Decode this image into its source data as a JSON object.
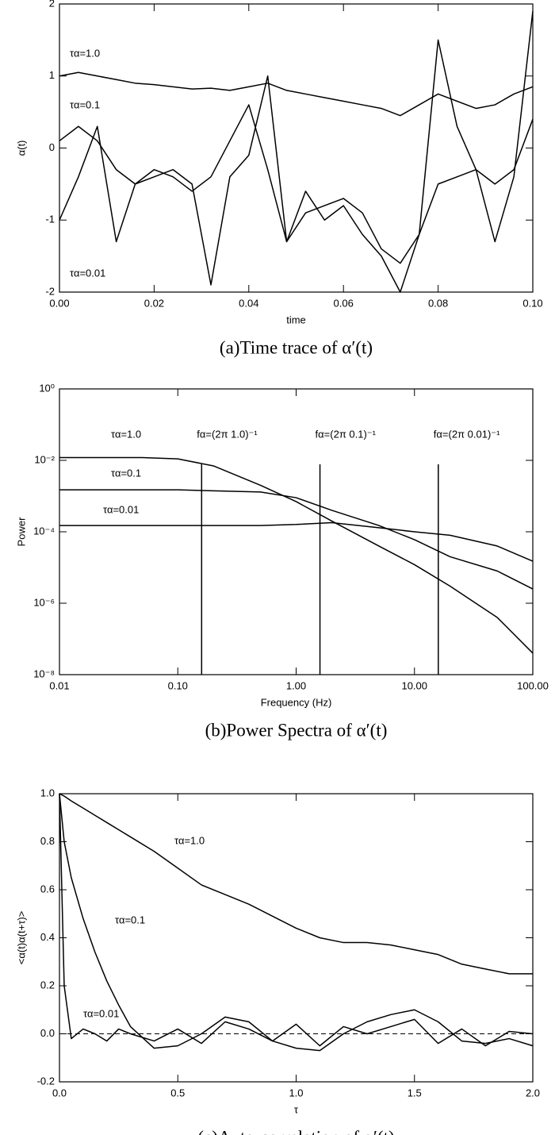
{
  "chart_data": [
    {
      "type": "line",
      "caption": "(a)Time trace of α′(t)",
      "x_label": "time",
      "y_label": "α(t)",
      "x": [
        0,
        0.004,
        0.008,
        0.012,
        0.016,
        0.02,
        0.024,
        0.028,
        0.032,
        0.036,
        0.04,
        0.044,
        0.048,
        0.052,
        0.056,
        0.06,
        0.064,
        0.068,
        0.072,
        0.076,
        0.08,
        0.084,
        0.088,
        0.092,
        0.096,
        0.1
      ],
      "series": [
        {
          "name": "τα=1.0",
          "color": "#000000",
          "values": [
            1.0,
            1.05,
            1.0,
            0.95,
            0.9,
            0.88,
            0.85,
            0.82,
            0.83,
            0.8,
            0.85,
            0.9,
            0.8,
            0.75,
            0.7,
            0.65,
            0.6,
            0.55,
            0.45,
            0.6,
            0.75,
            0.65,
            0.55,
            0.6,
            0.75,
            0.85
          ]
        },
        {
          "name": "τα=0.1",
          "color": "#000000",
          "values": [
            0.1,
            0.3,
            0.1,
            -0.3,
            -0.5,
            -0.3,
            -0.4,
            -0.6,
            -0.4,
            0.1,
            0.6,
            -0.3,
            -1.3,
            -0.9,
            -0.8,
            -0.7,
            -0.9,
            -1.4,
            -1.6,
            -1.2,
            -0.5,
            -0.4,
            -0.3,
            -0.5,
            -0.3,
            0.4
          ]
        },
        {
          "name": "τα=0.01",
          "color": "#000000",
          "values": [
            -1.0,
            -0.4,
            0.3,
            -1.3,
            -0.5,
            -0.4,
            -0.3,
            -0.5,
            -1.9,
            -0.4,
            -0.1,
            1.0,
            -1.3,
            -0.6,
            -1.0,
            -0.8,
            -1.2,
            -1.5,
            -2.0,
            -1.2,
            1.5,
            0.3,
            -0.3,
            -1.3,
            -0.4,
            1.9
          ]
        }
      ],
      "xlim": [
        0,
        0.1
      ],
      "xticks": [
        {
          "value": 0,
          "label": "0.00"
        },
        0.02,
        0.04,
        0.06,
        0.08,
        {
          "value": 0.1,
          "label": "0.10"
        }
      ],
      "ylim": [
        -2,
        2
      ],
      "yticks": [
        -2,
        -1,
        0,
        1,
        2
      ]
    },
    {
      "type": "line",
      "caption": "(b)Power Spectra of α′(t)",
      "x_label": "Frequency (Hz)",
      "y_label": "Power",
      "xlog": true,
      "ylog": true,
      "x": [
        0.01,
        0.02,
        0.05,
        0.1,
        0.2,
        0.5,
        1,
        2,
        5,
        10,
        20,
        50,
        100
      ],
      "series": [
        {
          "name": "τα=1.0",
          "color": "#000000",
          "values": [
            0.012,
            0.012,
            0.012,
            0.011,
            0.007,
            0.002,
            0.0007,
            0.0002,
            4e-05,
            1.2e-05,
            3e-06,
            4e-07,
            4e-08
          ]
        },
        {
          "name": "τα=0.1",
          "color": "#000000",
          "values": [
            0.0015,
            0.0015,
            0.0015,
            0.0015,
            0.0014,
            0.0013,
            0.0009,
            0.0004,
            0.00015,
            6e-05,
            2e-05,
            8e-06,
            2.5e-06
          ]
        },
        {
          "name": "τα=0.01",
          "color": "#000000",
          "values": [
            0.00015,
            0.00015,
            0.00015,
            0.00015,
            0.00015,
            0.00015,
            0.00016,
            0.00018,
            0.00013,
            0.0001,
            8e-05,
            4e-05,
            1.5e-05
          ]
        }
      ],
      "vlines": [
        {
          "x": 0.159,
          "label": "fα=(2π 1.0)⁻¹"
        },
        {
          "x": 1.59,
          "label": "fα=(2π 0.1)⁻¹"
        },
        {
          "x": 15.9,
          "label": "fα=(2π 0.01)⁻¹"
        }
      ],
      "xlim": [
        0.01,
        100
      ],
      "xticks": [
        0.01,
        {
          "value": 0.1,
          "label": "0.10"
        },
        {
          "value": 1,
          "label": "1.00"
        },
        {
          "value": 10,
          "label": "10.00"
        },
        {
          "value": 100,
          "label": "100.00"
        }
      ],
      "ylim": [
        1e-08,
        1
      ],
      "yticks": [
        {
          "value": 1e-08,
          "label": "10⁻⁸"
        },
        {
          "value": 1e-06,
          "label": "10⁻⁶"
        },
        {
          "value": 0.0001,
          "label": "10⁻⁴"
        },
        {
          "value": 0.01,
          "label": "10⁻²"
        },
        {
          "value": 1,
          "label": "10⁰"
        }
      ]
    },
    {
      "type": "line",
      "caption": "(c)Auto-correlation of α′(t)",
      "x_label": "τ",
      "y_label": "<α(t)α(t+τ)>",
      "x": [
        0,
        0.02,
        0.05,
        0.1,
        0.15,
        0.2,
        0.25,
        0.3,
        0.4,
        0.5,
        0.6,
        0.7,
        0.8,
        0.9,
        1.0,
        1.1,
        1.2,
        1.3,
        1.4,
        1.5,
        1.6,
        1.7,
        1.8,
        1.9,
        2.0
      ],
      "series": [
        {
          "name": "τα=1.0",
          "color": "#000000",
          "values": [
            1.0,
            0.99,
            0.97,
            0.94,
            0.91,
            0.88,
            0.85,
            0.82,
            0.76,
            0.69,
            0.62,
            0.58,
            0.54,
            0.49,
            0.44,
            0.4,
            0.38,
            0.38,
            0.37,
            0.35,
            0.33,
            0.29,
            0.27,
            0.25,
            0.25
          ]
        },
        {
          "name": "τα=0.1",
          "color": "#000000",
          "values": [
            1.0,
            0.8,
            0.65,
            0.48,
            0.34,
            0.22,
            0.12,
            0.03,
            -0.06,
            -0.05,
            0.0,
            0.07,
            0.05,
            -0.03,
            -0.06,
            -0.07,
            0.0,
            0.05,
            0.08,
            0.1,
            0.05,
            -0.03,
            -0.04,
            -0.02,
            -0.05
          ]
        },
        {
          "name": "τα=0.01",
          "color": "#000000",
          "values": [
            1.0,
            0.2,
            -0.02,
            0.02,
            0.0,
            -0.03,
            0.02,
            0.0,
            -0.03,
            0.02,
            -0.04,
            0.05,
            0.02,
            -0.03,
            0.04,
            -0.05,
            0.03,
            0.0,
            0.03,
            0.06,
            -0.04,
            0.02,
            -0.05,
            0.01,
            0.0
          ]
        }
      ],
      "hline": 0,
      "hline_style": "dashed",
      "xlim": [
        0,
        2
      ],
      "xticks": [
        {
          "value": 0,
          "label": "0.0"
        },
        0.5,
        {
          "value": 1,
          "label": "1.0"
        },
        1.5,
        {
          "value": 2,
          "label": "2.0"
        }
      ],
      "ylim": [
        -0.2,
        1
      ],
      "yticks": [
        -0.2,
        {
          "value": 0,
          "label": "0.0"
        },
        0.2,
        0.4,
        0.6,
        0.8,
        {
          "value": 1,
          "label": "1.0"
        }
      ]
    }
  ]
}
